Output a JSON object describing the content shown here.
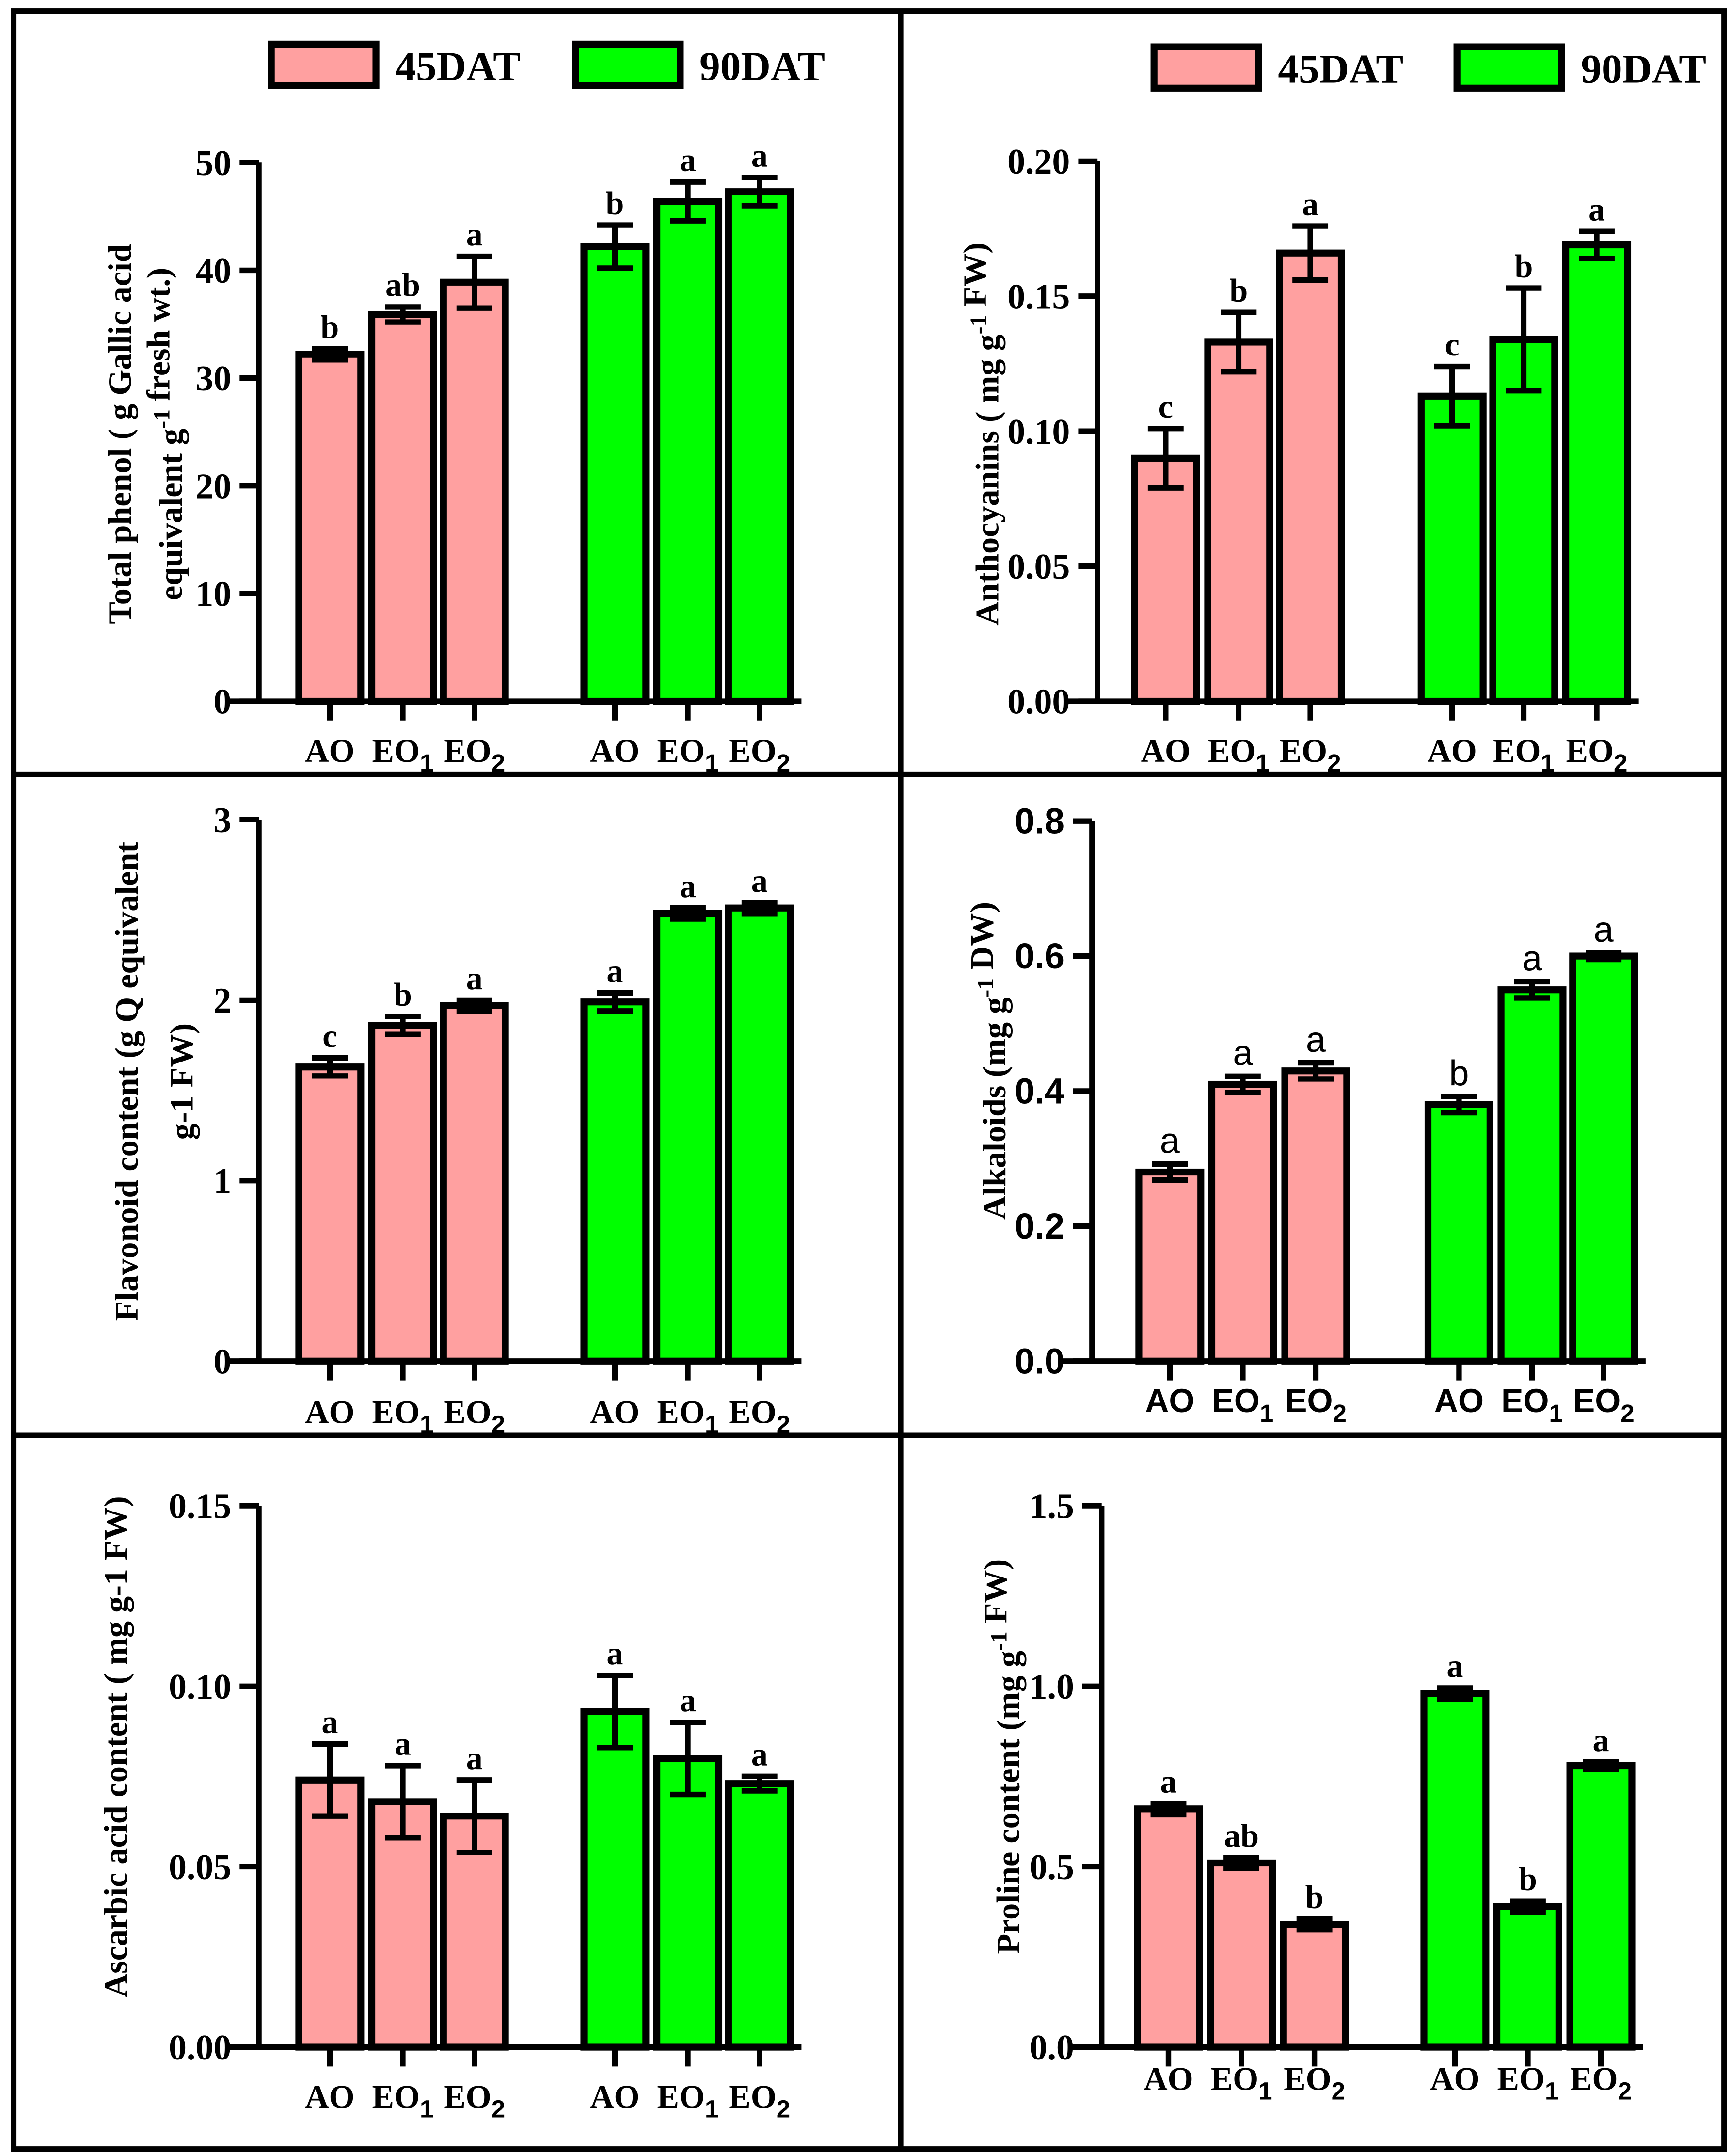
{
  "colors": {
    "45DAT": "#ffa0a0",
    "90DAT": "#00ff00",
    "outline": "#000000"
  },
  "chart_data": [
    {
      "type": "bar",
      "ylabel": [
        "Total phenol (  g Gallic acid",
        "equivalent g-1 fresh wt.)"
      ],
      "ylim": [
        0,
        50
      ],
      "yticks": [
        "0",
        "10",
        "20",
        "30",
        "40",
        "50"
      ],
      "legend": [
        "45DAT",
        "90DAT"
      ],
      "categories": [
        [
          "AO",
          ""
        ],
        [
          "EO",
          "1"
        ],
        [
          "EO",
          "2"
        ]
      ],
      "series": [
        {
          "name": "45DAT",
          "values": [
            32.2,
            35.9,
            38.9
          ],
          "errors": [
            0.5,
            0.7,
            2.4
          ],
          "letters": [
            "b",
            "ab",
            "a"
          ]
        },
        {
          "name": "90DAT",
          "values": [
            42.2,
            46.4,
            47.3
          ],
          "errors": [
            2.0,
            1.8,
            1.3
          ],
          "letters": [
            "b",
            "a",
            "a"
          ]
        }
      ]
    },
    {
      "type": "bar",
      "ylabel": [
        "Anthocyanins ( mg g-1 FW)"
      ],
      "ylim": [
        0,
        0.2
      ],
      "yticks": [
        "0.00",
        "0.05",
        "0.10",
        "0.15",
        "0.20"
      ],
      "legend": [
        "45DAT",
        "90DAT"
      ],
      "categories": [
        [
          "AO",
          ""
        ],
        [
          "EO",
          "1"
        ],
        [
          "EO",
          "2"
        ]
      ],
      "series": [
        {
          "name": "45DAT",
          "values": [
            0.09,
            0.133,
            0.166
          ],
          "errors": [
            0.011,
            0.011,
            0.01
          ],
          "letters": [
            "c",
            "b",
            "a"
          ]
        },
        {
          "name": "90DAT",
          "values": [
            0.113,
            0.134,
            0.169
          ],
          "errors": [
            0.011,
            0.019,
            0.005
          ],
          "letters": [
            "c",
            "b",
            "a"
          ]
        }
      ]
    },
    {
      "type": "bar",
      "ylabel": [
        "Flavonoid content (g Q equivalent",
        "g-1 FW)"
      ],
      "ylim": [
        0,
        3
      ],
      "yticks": [
        "0",
        "1",
        "2",
        "3"
      ],
      "categories": [
        [
          "AO",
          ""
        ],
        [
          "EO",
          "1"
        ],
        [
          "EO",
          "2"
        ]
      ],
      "series": [
        {
          "name": "45DAT",
          "values": [
            1.63,
            1.86,
            1.97
          ],
          "errors": [
            0.05,
            0.05,
            0.03
          ],
          "letters": [
            "c",
            "b",
            "a"
          ]
        },
        {
          "name": "90DAT",
          "values": [
            1.99,
            2.48,
            2.51
          ],
          "errors": [
            0.05,
            0.03,
            0.03
          ],
          "letters": [
            "a",
            "a",
            "a"
          ]
        }
      ]
    },
    {
      "type": "bar",
      "ylabel": [
        "Alkaloids (mg g-1 DW)"
      ],
      "ylim": [
        0,
        0.8
      ],
      "yticks": [
        "0.0",
        "0.2",
        "0.4",
        "0.6",
        "0.8"
      ],
      "categories": [
        [
          "AO",
          ""
        ],
        [
          "EO",
          "1"
        ],
        [
          "EO",
          "2"
        ]
      ],
      "series": [
        {
          "name": "45DAT",
          "values": [
            0.28,
            0.41,
            0.43
          ],
          "errors": [
            0.012,
            0.012,
            0.012
          ],
          "letters": [
            "a",
            "a",
            "a"
          ]
        },
        {
          "name": "90DAT",
          "values": [
            0.38,
            0.55,
            0.6
          ],
          "errors": [
            0.012,
            0.012,
            0.005
          ],
          "letters": [
            "b",
            "a",
            "a"
          ]
        }
      ]
    },
    {
      "type": "bar",
      "ylabel": [
        "Ascarbic acid content ( mg g-1 FW)"
      ],
      "ylim": [
        0,
        0.15
      ],
      "yticks": [
        "0.00",
        "0.05",
        "0.10",
        "0.15"
      ],
      "categories": [
        [
          "AO",
          ""
        ],
        [
          "EO",
          "1"
        ],
        [
          "EO",
          "2"
        ]
      ],
      "series": [
        {
          "name": "45DAT",
          "values": [
            0.074,
            0.068,
            0.064
          ],
          "errors": [
            0.01,
            0.01,
            0.01
          ],
          "letters": [
            "a",
            "a",
            "a"
          ]
        },
        {
          "name": "90DAT",
          "values": [
            0.093,
            0.08,
            0.073
          ],
          "errors": [
            0.01,
            0.01,
            0.002
          ],
          "letters": [
            "a",
            "a",
            "a"
          ]
        }
      ]
    },
    {
      "type": "bar",
      "ylabel": [
        "Proline content (mg g-1 FW)"
      ],
      "ylim": [
        0,
        1.5
      ],
      "yticks": [
        "0.0",
        "0.5",
        "1.0",
        "1.5"
      ],
      "categories": [
        [
          "AO",
          ""
        ],
        [
          "EO",
          "1"
        ],
        [
          "EO",
          "2"
        ]
      ],
      "series": [
        {
          "name": "45DAT",
          "values": [
            0.66,
            0.51,
            0.34
          ],
          "errors": [
            0.015,
            0.015,
            0.015
          ],
          "letters": [
            "a",
            "ab",
            "b"
          ]
        },
        {
          "name": "90DAT",
          "values": [
            0.98,
            0.39,
            0.78
          ],
          "errors": [
            0.015,
            0.015,
            0.01
          ],
          "letters": [
            "a",
            "b",
            "a"
          ]
        }
      ]
    }
  ]
}
